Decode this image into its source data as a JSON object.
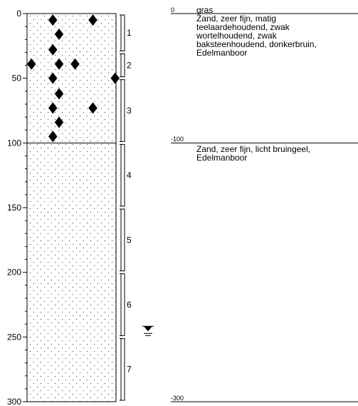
{
  "depth_axis": {
    "unit": "cm",
    "min": 0,
    "max": 300,
    "tick_labels": [
      "0",
      "50",
      "100",
      "150",
      "200",
      "250",
      "300"
    ],
    "major_step": 50,
    "minor_step": 10
  },
  "layer_boundaries": [
    0,
    100,
    300
  ],
  "lithology": {
    "pattern": "dotted",
    "pattern_name": "sand"
  },
  "sample_intervals": [
    {
      "label": "1",
      "top": 0,
      "bottom": 30
    },
    {
      "label": "2",
      "top": 30,
      "bottom": 50
    },
    {
      "label": "3",
      "top": 50,
      "bottom": 100
    },
    {
      "label": "4",
      "top": 100,
      "bottom": 150
    },
    {
      "label": "5",
      "top": 150,
      "bottom": 200
    },
    {
      "label": "6",
      "top": 200,
      "bottom": 250
    },
    {
      "label": "7",
      "top": 250,
      "bottom": 300
    }
  ],
  "markers": {
    "symbol": "diamond",
    "points": [
      {
        "pos": 0.29,
        "depth": 5
      },
      {
        "pos": 0.74,
        "depth": 5
      },
      {
        "pos": 0.36,
        "depth": 16
      },
      {
        "pos": 0.29,
        "depth": 28
      },
      {
        "pos": 0.05,
        "depth": 39
      },
      {
        "pos": 0.36,
        "depth": 39
      },
      {
        "pos": 0.54,
        "depth": 39
      },
      {
        "pos": 0.29,
        "depth": 50
      },
      {
        "pos": 0.99,
        "depth": 50
      },
      {
        "pos": 0.36,
        "depth": 62
      },
      {
        "pos": 0.29,
        "depth": 73
      },
      {
        "pos": 0.74,
        "depth": 73
      },
      {
        "pos": 0.36,
        "depth": 84
      },
      {
        "pos": 0.29,
        "depth": 95
      }
    ]
  },
  "groundwater": {
    "depth": 245,
    "symbol": "groundwater-level"
  },
  "descriptions": [
    {
      "depth_label": "0",
      "depth": 0,
      "lines": [
        "gras",
        "Zand, zeer fijn, matig",
        "teelaardehoudend, zwak",
        "wortelhoudend, zwak",
        "baksteenhoudend, donkerbruin,",
        "Edelmanboor"
      ]
    },
    {
      "depth_label": "-100",
      "depth": 100,
      "lines": [
        "Zand, zeer fijn, licht bruingeel,",
        "Edelmanboor"
      ]
    }
  ],
  "end_label": {
    "text": "-300",
    "depth": 300
  }
}
